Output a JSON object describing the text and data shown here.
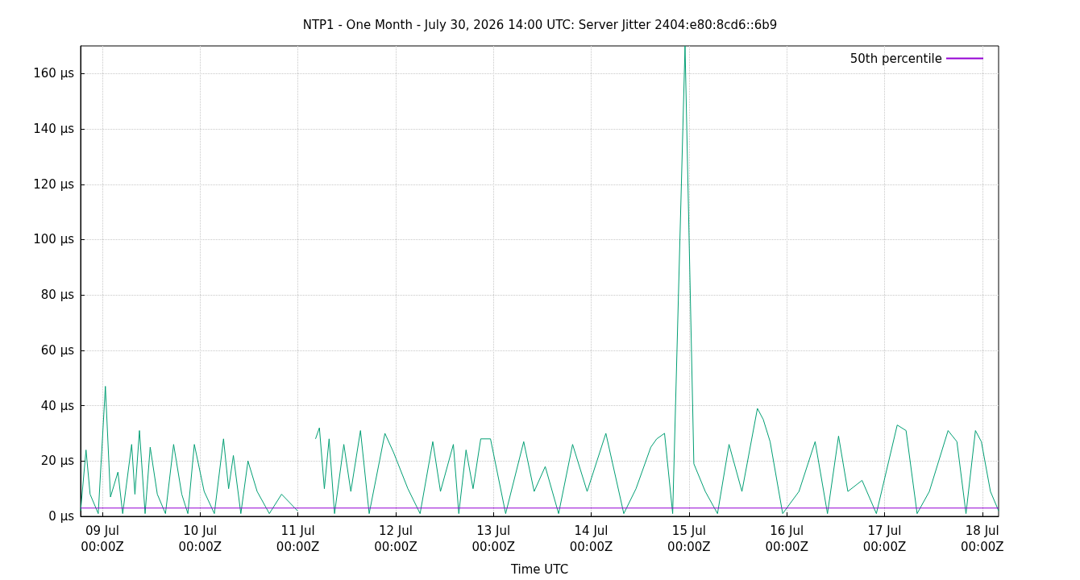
{
  "chart_data": {
    "type": "line",
    "title": "NTP1 - One Month - July 30, 2026 14:00 UTC: Server Jitter 2404:e80:8cd6::6b9",
    "xlabel": "Time UTC",
    "xlim": [
      "2026-07-08T18:40",
      "2026-07-18T04:00"
    ],
    "xticks": [
      {
        "value": "2026-07-09T00:00",
        "label": "09 Jul\n00:00Z"
      },
      {
        "value": "2026-07-10T00:00",
        "label": "10 Jul\n00:00Z"
      },
      {
        "value": "2026-07-11T00:00",
        "label": "11 Jul\n00:00Z"
      },
      {
        "value": "2026-07-12T00:00",
        "label": "12 Jul\n00:00Z"
      },
      {
        "value": "2026-07-13T00:00",
        "label": "13 Jul\n00:00Z"
      },
      {
        "value": "2026-07-14T00:00",
        "label": "14 Jul\n00:00Z"
      },
      {
        "value": "2026-07-15T00:00",
        "label": "15 Jul\n00:00Z"
      },
      {
        "value": "2026-07-16T00:00",
        "label": "16 Jul\n00:00Z"
      },
      {
        "value": "2026-07-17T00:00",
        "label": "17 Jul\n00:00Z"
      },
      {
        "value": "2026-07-18T00:00",
        "label": "18 Jul\n00:00Z"
      }
    ],
    "ylim": [
      0,
      170
    ],
    "yticks": [
      {
        "value": 0,
        "label": "0 µs"
      },
      {
        "value": 20,
        "label": "20 µs"
      },
      {
        "value": 40,
        "label": "40 µs"
      },
      {
        "value": 60,
        "label": "60 µs"
      },
      {
        "value": 80,
        "label": "80 µs"
      },
      {
        "value": 100,
        "label": "100 µs"
      },
      {
        "value": 120,
        "label": "120 µs"
      },
      {
        "value": 140,
        "label": "140 µs"
      },
      {
        "value": 160,
        "label": "160 µs"
      }
    ],
    "grid": true,
    "legend": "top right",
    "series": [
      {
        "color": "#009e73",
        "x": [
          "2026-07-08T18:40",
          "2026-07-08T20:00",
          "2026-07-08T21:00",
          "2026-07-08T23:00",
          "2026-07-09T00:45",
          "2026-07-09T02:00",
          "2026-07-09T03:50",
          "2026-07-09T05:00",
          "2026-07-09T07:12",
          "2026-07-09T08:00",
          "2026-07-09T09:07",
          "2026-07-09T10:30",
          "2026-07-09T11:45",
          "2026-07-09T13:30",
          "2026-07-09T15:30",
          "2026-07-09T17:30",
          "2026-07-09T19:30",
          "2026-07-09T21:00",
          "2026-07-09T22:35",
          "2026-07-10T01:00",
          "2026-07-10T03:30",
          "2026-07-10T05:45",
          "2026-07-10T07:00",
          "2026-07-10T08:10",
          "2026-07-10T10:00",
          "2026-07-10T11:45",
          "2026-07-10T14:00",
          "2026-07-10T17:00",
          "2026-07-10T20:00",
          "2026-07-10T23:55",
          "2026-07-11T02:00",
          "2026-07-11T04:20",
          "2026-07-11T05:17",
          "2026-07-11T06:30",
          "2026-07-11T07:40",
          "2026-07-11T09:00",
          "2026-07-11T11:17",
          "2026-07-11T13:00",
          "2026-07-11T15:22",
          "2026-07-11T17:30",
          "2026-07-11T21:22",
          "2026-07-11T23:31",
          "2026-07-12T03:00",
          "2026-07-12T06:00",
          "2026-07-12T09:07",
          "2026-07-12T11:00",
          "2026-07-12T14:10",
          "2026-07-12T15:30",
          "2026-07-12T17:17",
          "2026-07-12T19:00",
          "2026-07-12T20:53",
          "2026-07-12T23:17",
          "2026-07-13T03:00",
          "2026-07-13T07:26",
          "2026-07-13T10:00",
          "2026-07-13T12:43",
          "2026-07-13T16:00",
          "2026-07-13T19:26",
          "2026-07-13T23:00",
          "2026-07-14T03:36",
          "2026-07-14T08:00",
          "2026-07-14T11:00",
          "2026-07-14T14:38",
          "2026-07-14T16:05",
          "2026-07-14T18:00",
          "2026-07-14T20:00",
          "2026-07-14T23:02",
          "2026-07-15T01:12",
          "2026-07-15T04:00",
          "2026-07-15T07:00",
          "2026-07-15T09:50",
          "2026-07-15T13:00",
          "2026-07-15T16:48",
          "2026-07-15T18:14",
          "2026-07-15T19:55",
          "2026-07-15T23:00",
          "2026-07-16T03:00",
          "2026-07-16T06:58",
          "2026-07-16T10:00",
          "2026-07-16T12:43",
          "2026-07-16T15:00",
          "2026-07-16T18:29",
          "2026-07-16T22:00",
          "2026-07-17T03:07",
          "2026-07-17T05:17",
          "2026-07-17T08:00",
          "2026-07-17T11:00",
          "2026-07-17T15:36",
          "2026-07-17T17:46",
          "2026-07-17T20:00",
          "2026-07-17T22:19",
          "2026-07-17T23:46",
          "2026-07-18T02:00",
          "2026-07-18T04:00"
        ],
        "values": [
          2,
          24,
          8,
          1,
          47,
          7,
          16,
          1,
          26,
          8,
          31,
          1,
          25,
          8,
          1,
          26,
          8,
          1,
          26,
          9,
          1,
          28,
          10,
          22,
          1,
          20,
          9,
          1,
          8,
          2,
          null,
          28,
          32,
          10,
          28,
          1,
          26,
          9,
          31,
          1,
          30,
          23,
          10,
          1,
          27,
          9,
          26,
          1,
          24,
          10,
          28,
          28,
          1,
          27,
          9,
          18,
          1,
          26,
          9,
          30,
          1,
          10,
          25,
          28,
          30,
          1,
          170,
          19,
          9,
          1,
          26,
          9,
          39,
          35,
          27,
          1,
          9,
          27,
          1,
          29,
          9,
          13,
          1,
          33,
          31,
          1,
          9,
          31,
          27,
          1,
          31,
          27,
          9,
          2
        ]
      },
      {
        "name": "50th percentile",
        "color": "#9400d3",
        "x": [
          "2026-07-08T18:40",
          "2026-07-18T04:00"
        ],
        "values": [
          3,
          3
        ]
      }
    ]
  }
}
